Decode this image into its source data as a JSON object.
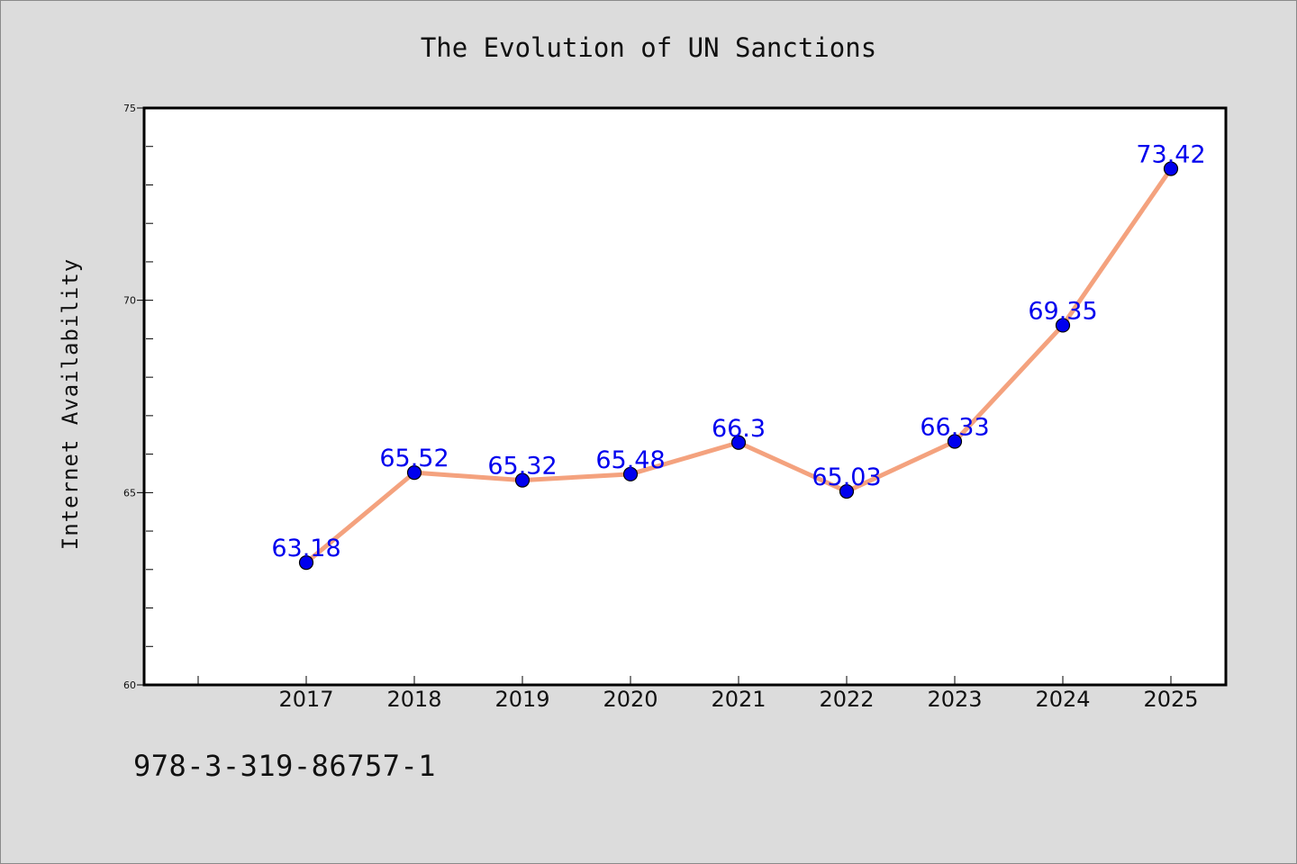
{
  "chart_data": {
    "type": "line",
    "title": "The Evolution of UN Sanctions",
    "ylabel": "Internet Availability",
    "xlabel": "",
    "categories": [
      "2017",
      "2018",
      "2019",
      "2020",
      "2021",
      "2022",
      "2023",
      "2024",
      "2025"
    ],
    "series": [
      {
        "values": [
          63.18,
          65.52,
          65.32,
          65.48,
          66.3,
          65.03,
          66.33,
          69.35,
          73.42
        ]
      }
    ],
    "data_labels": [
      "63.18",
      "65.52",
      "65.32",
      "65.48",
      "66.3",
      "65.03",
      "66.33",
      "69.35",
      "73.42"
    ],
    "ylim": [
      60,
      75
    ],
    "y_ticks": [
      "60",
      "65",
      "70",
      "75"
    ],
    "grid": false,
    "colors": {
      "line": "#f4a27e",
      "marker": "#0000ee",
      "label": "#0000ee"
    }
  },
  "footer": {
    "code": "978-3-319-86757-1"
  }
}
